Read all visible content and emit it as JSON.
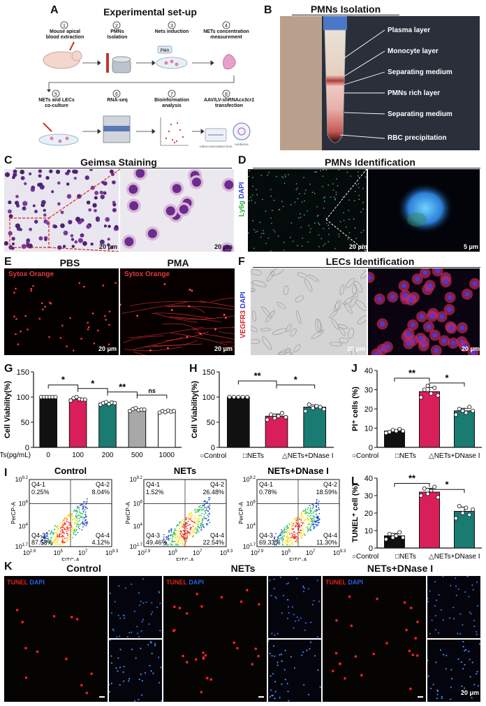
{
  "panelA": {
    "label": "A",
    "title": "Experimental set-up",
    "steps": [
      {
        "num": "1",
        "text": "Mouse apical\nblood extraction"
      },
      {
        "num": "2",
        "text": "PMNs\nIsolation"
      },
      {
        "num": "3",
        "text": "Nets induction"
      },
      {
        "num": "4",
        "text": "NETs concentration\nmeasurement"
      },
      {
        "num": "5",
        "text": "NETs and LECs\nco-culture"
      },
      {
        "num": "6",
        "text": "RNA-seq"
      },
      {
        "num": "7",
        "text": "Bioinformation\nanalysis"
      },
      {
        "num": "8",
        "text": "AAV/LV-shRNA",
        "text_italic": "cx3cr1",
        "text_after": "transfection"
      }
    ],
    "pma": "PMA",
    "aav_caption": "Adeno-associated\nvirus",
    "lv_caption": "Lentivirus"
  },
  "panelB": {
    "label": "B",
    "title": "PMNs Isolation",
    "layers": [
      "Plasma layer",
      "Monocyte layer",
      "Separating medium",
      "PMNs rich layer",
      "Separating medium",
      "RBC precipitation"
    ]
  },
  "panelC": {
    "label": "C",
    "title": "Geimsa Staining",
    "scale1": "20 μm",
    "scale2": "20 μm"
  },
  "panelD": {
    "label": "D",
    "title": "PMNs Identification",
    "chan1": "Ly6g",
    "chan2": "DAPI",
    "scale1": "20 μm",
    "scale2": "5 μm"
  },
  "panelE": {
    "label": "E",
    "title_left": "PBS",
    "title_right": "PMA",
    "chan": "Sytox Orange",
    "scale1": "20 μm",
    "scale2": "20 μm"
  },
  "panelF": {
    "label": "F",
    "title": "LECs Identification",
    "chan1": "VEGFR3",
    "chan2": "DAPI",
    "scale1": "20 μm",
    "scale2": "20 μm"
  },
  "panelG": {
    "label": "G",
    "ylabel": "Cell Viability(%)",
    "xlabel": "NETs(pg/mL)",
    "sig": [
      "*",
      "*",
      "**",
      "ns"
    ]
  },
  "panelH": {
    "label": "H",
    "ylabel": "Cell Viability(%)",
    "sig": [
      "**",
      "*"
    ]
  },
  "panelJ": {
    "label": "J",
    "ylabel": "PI⁺ cells (%)",
    "sig": [
      "**",
      "*"
    ]
  },
  "panelL": {
    "label": "L",
    "ylabel": "TUNEL⁺ cell (%)",
    "sig": [
      "**",
      "*"
    ]
  },
  "legend3": {
    "items": [
      {
        "mark": "○",
        "text": "Control"
      },
      {
        "mark": "□",
        "text": "NETs"
      },
      {
        "mark": "△",
        "text": "NETs+DNase I"
      }
    ]
  },
  "panelI": {
    "label": "I",
    "xlabel": "FITC-A",
    "ylabel": "PerCP-A",
    "plots": [
      {
        "title": "Control",
        "q1": "Q4-1",
        "v1": "0.25%",
        "q2": "Q4-2",
        "v2": "8.04%",
        "q3": "Q4-3",
        "v3": "87.58%",
        "q4": "Q4-4",
        "v4": "4.12%"
      },
      {
        "title": "NETs",
        "q1": "Q4-1",
        "v1": "1.52%",
        "q2": "Q4-2",
        "v2": "26.48%",
        "q3": "Q4-3",
        "v3": "49.46%",
        "q4": "Q4-4",
        "v4": "22.54%"
      },
      {
        "title": "NETs+DNase I",
        "q1": "Q4-1",
        "v1": "0.78%",
        "q2": "Q4-2",
        "v2": "18.59%",
        "q3": "Q4-3",
        "v3": "69.33%",
        "q4": "Q4-4",
        "v4": "11.30%"
      }
    ],
    "xticks": [
      "10",
      "10",
      "10",
      "10"
    ],
    "xtick_exp": [
      "2.9",
      "5",
      "7",
      "9.3"
    ],
    "yticks": [
      "10",
      "10",
      "10",
      "10"
    ],
    "ytick_exp": [
      "9.2",
      "6",
      "4",
      "1.7"
    ]
  },
  "panelK": {
    "label": "K",
    "titles": [
      "Control",
      "NETs",
      "NETs+DNase I"
    ],
    "chan1": "TUNEL",
    "chan2": "DAPI",
    "scale": "20 μm"
  },
  "chart_data": [
    {
      "type": "bar",
      "panel": "G",
      "categories": [
        "0",
        "100",
        "200",
        "500",
        "1000"
      ],
      "values": [
        100,
        96,
        88,
        75,
        71
      ],
      "points": [
        [
          100,
          100,
          100,
          100,
          100,
          100
        ],
        [
          93,
          98,
          100,
          96,
          95,
          95
        ],
        [
          85,
          88,
          90,
          86,
          89,
          88
        ],
        [
          72,
          76,
          78,
          74,
          75,
          75
        ],
        [
          69,
          72,
          70,
          73,
          71,
          72
        ]
      ],
      "ylabel": "Cell Viability(%)",
      "xlabel": "NETs(pg/mL)",
      "ylim": [
        0,
        150
      ],
      "yticks": [
        0,
        50,
        100,
        150
      ],
      "colors": [
        "#111111",
        "#d81f5a",
        "#1a7b73",
        "#a8a8a8",
        "#ffffff"
      ]
    },
    {
      "type": "bar",
      "panel": "H",
      "categories": [
        "Control",
        "NETs",
        "NETs+DNase I"
      ],
      "values": [
        100,
        62,
        80
      ],
      "points": [
        [
          100,
          100,
          100,
          100,
          100
        ],
        [
          55,
          65,
          58,
          62,
          68,
          60
        ],
        [
          72,
          85,
          78,
          82,
          80,
          76
        ]
      ],
      "ylabel": "Cell Viability(%)",
      "ylim": [
        0,
        150
      ],
      "yticks": [
        0,
        50,
        100,
        150
      ],
      "colors": [
        "#111111",
        "#d81f5a",
        "#1a7b73"
      ]
    },
    {
      "type": "bar",
      "panel": "J",
      "categories": [
        "Control",
        "NETs",
        "NETs+DNase I"
      ],
      "values": [
        8.5,
        29,
        19
      ],
      "points": [
        [
          7.5,
          8,
          9,
          8.5,
          9.5,
          8.5
        ],
        [
          26,
          30,
          32,
          28,
          31,
          27
        ],
        [
          17,
          20,
          19,
          18,
          21,
          19
        ]
      ],
      "ylabel": "PI⁺ cells (%)",
      "ylim": [
        0,
        40
      ],
      "yticks": [
        0,
        10,
        20,
        30,
        40
      ],
      "colors": [
        "#111111",
        "#d81f5a",
        "#1a7b73"
      ]
    },
    {
      "type": "bar",
      "panel": "L",
      "categories": [
        "Control",
        "NETs",
        "NETs+DNase I"
      ],
      "values": [
        7,
        32,
        21
      ],
      "points": [
        [
          5,
          8,
          6,
          7,
          9,
          6
        ],
        [
          30,
          34,
          31,
          33,
          35,
          29
        ],
        [
          17,
          24,
          20,
          23,
          19,
          22
        ]
      ],
      "ylabel": "TUNEL⁺ cell (%)",
      "ylim": [
        0,
        40
      ],
      "yticks": [
        0,
        10,
        20,
        30,
        40
      ],
      "colors": [
        "#111111",
        "#d81f5a",
        "#1a7b73"
      ]
    }
  ]
}
